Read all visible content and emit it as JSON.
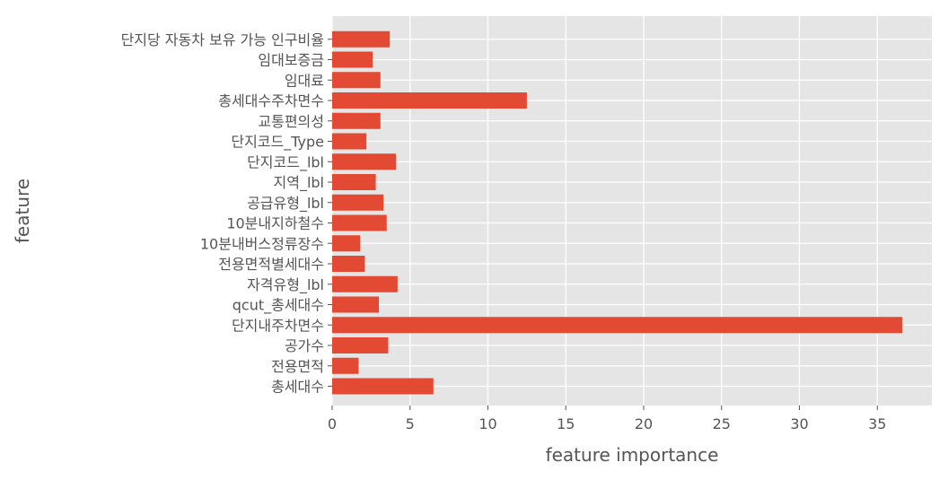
{
  "chart_data": {
    "type": "bar",
    "orientation": "horizontal",
    "categories": [
      "총세대수",
      "전용면적",
      "공가수",
      "단지내주차면수",
      "qcut_총세대수",
      "자격유형_lbl",
      "전용면적별세대수",
      "10분내버스정류장수",
      "10분내지하철수",
      "공급유형_lbl",
      "지역_lbl",
      "단지코드_lbl",
      "단지코드_Type",
      "교통편의성",
      "총세대수주차면수",
      "임대료",
      "임대보증금",
      "단지당 자동차 보유 가능 인구비율"
    ],
    "values": [
      6.5,
      1.7,
      3.6,
      36.6,
      3.0,
      4.2,
      2.1,
      1.8,
      3.5,
      3.3,
      2.8,
      4.1,
      2.2,
      3.1,
      12.5,
      3.1,
      2.6,
      3.7
    ],
    "xlabel": "feature importance",
    "ylabel": "feature",
    "xlim": [
      0,
      38.5
    ],
    "xticks": [
      "0",
      "5",
      "10",
      "15",
      "20",
      "25",
      "30",
      "35"
    ],
    "grid": true,
    "style": "ggplot",
    "colors": {
      "bar": "#E24A33",
      "plot_background": "#E5E5E5",
      "grid": "#FFFFFF",
      "text": "#555555"
    }
  }
}
